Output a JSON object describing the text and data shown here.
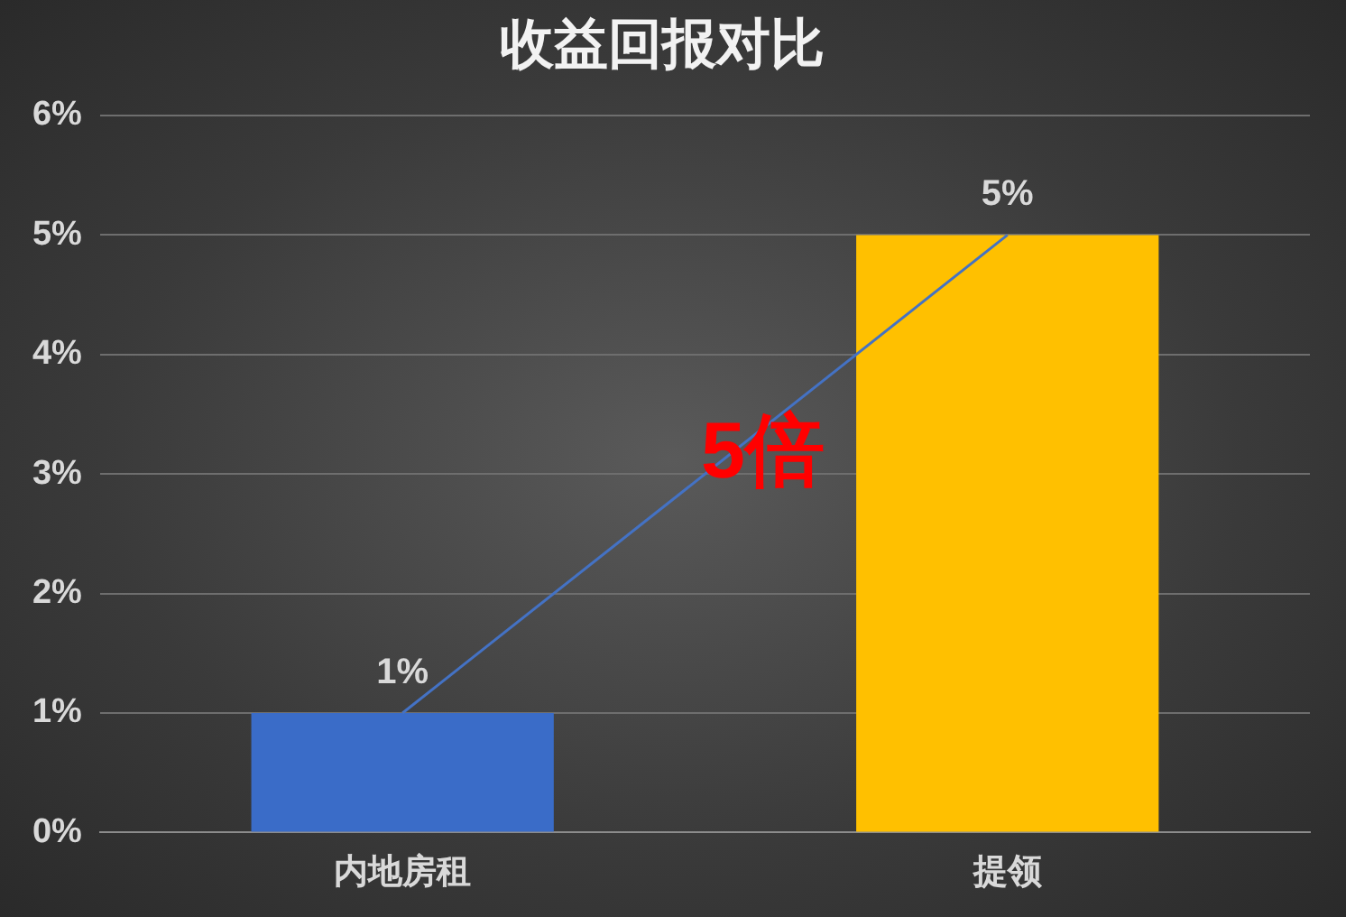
{
  "chart_data": {
    "type": "bar",
    "title": "收益回报对比",
    "categories": [
      "内地房租",
      "提领"
    ],
    "series": [
      {
        "colors": [
          "#3a6cc8",
          "#ffc000"
        ],
        "values": [
          1,
          5
        ],
        "value_labels": [
          "1%",
          "5%"
        ]
      },
      {
        "type": "line",
        "color": "#4472c4",
        "values": [
          1,
          5
        ],
        "marker": "none"
      }
    ],
    "ylim": [
      0,
      6
    ],
    "yticks": [
      {
        "value": 0,
        "label": "0%"
      },
      {
        "value": 1,
        "label": "1%"
      },
      {
        "value": 2,
        "label": "2%"
      },
      {
        "value": 3,
        "label": "3%"
      },
      {
        "value": 4,
        "label": "4%"
      },
      {
        "value": 5,
        "label": "5%"
      },
      {
        "value": 6,
        "label": "6%"
      }
    ],
    "grid": "y",
    "legend": false,
    "annotations": [
      "5倍"
    ]
  }
}
